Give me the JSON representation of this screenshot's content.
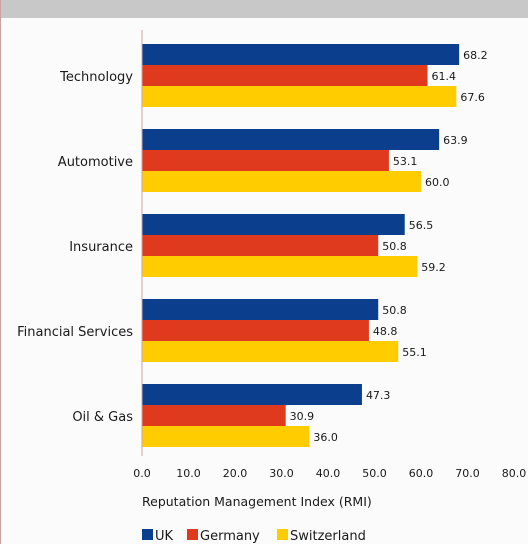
{
  "chart_data": {
    "type": "bar",
    "orientation": "horizontal",
    "categories": [
      "Technology",
      "Automotive",
      "Insurance",
      "Financial Services",
      "Oil & Gas"
    ],
    "series": [
      {
        "name": "UK",
        "color": "#0b3e8c",
        "values": [
          68.2,
          63.9,
          56.5,
          50.8,
          47.3
        ]
      },
      {
        "name": "Germany",
        "color": "#e03a1e",
        "values": [
          61.4,
          53.1,
          50.8,
          48.8,
          30.9
        ]
      },
      {
        "name": "Switzerland",
        "color": "#ffcc00",
        "values": [
          67.6,
          60.0,
          59.2,
          55.1,
          36.0
        ]
      }
    ],
    "data_labels": [
      [
        "68.2",
        "63.9",
        "56.5",
        "50.8",
        "47.3"
      ],
      [
        "61.4",
        "53.1",
        "50.8",
        "48.8",
        "30.9"
      ],
      [
        "67.6",
        "60.0",
        "59.2",
        "55.1",
        "36.0"
      ]
    ],
    "xlabel": "Reputation Management Index (RMI)",
    "xlim": [
      0,
      80
    ],
    "xticks": [
      "0.0",
      "10.0",
      "20.0",
      "30.0",
      "40.0",
      "50.0",
      "60.0",
      "70.0",
      "80.0"
    ],
    "grid": false,
    "legend_position": "bottom-left"
  }
}
